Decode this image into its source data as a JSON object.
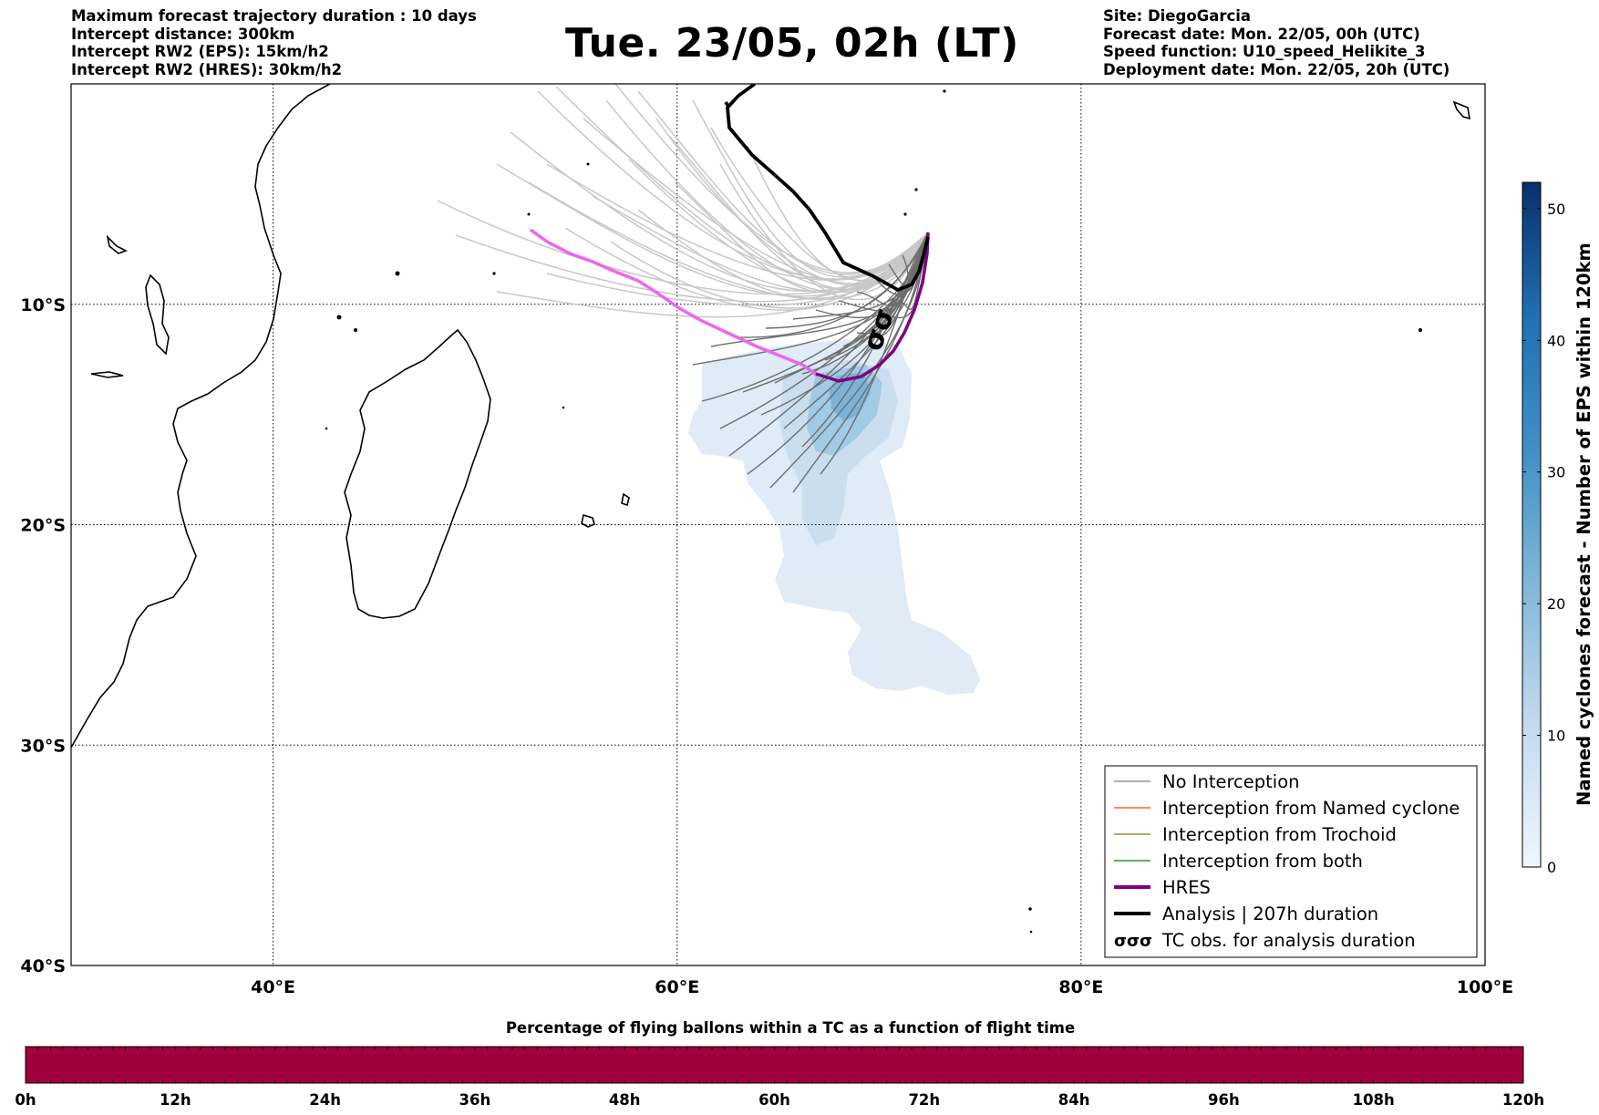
{
  "header": {
    "left_lines": [
      "Maximum forecast trajectory duration : 10 days",
      "Intercept distance: 300km",
      "Intercept RW2 (EPS):  15km/h2",
      "Intercept RW2 (HRES): 30km/h2"
    ],
    "title": "Tue. 23/05, 02h (LT)",
    "right_lines": [
      "Site: DiegoGarcia",
      "Forecast date: Mon. 22/05, 00h (UTC)",
      "Speed function: U10_speed_Helikite_3",
      "Deployment date: Mon. 22/05, 20h (UTC)"
    ]
  },
  "map": {
    "lon_range": [
      30,
      100
    ],
    "lat_range": [
      -40,
      0
    ],
    "lon_ticks": [
      {
        "value": 40,
        "label": "40°E"
      },
      {
        "value": 60,
        "label": "60°E"
      },
      {
        "value": 80,
        "label": "80°E"
      },
      {
        "value": 100,
        "label": "100°E"
      }
    ],
    "lat_ticks": [
      {
        "value": -10,
        "label": "10°S"
      },
      {
        "value": -20,
        "label": "20°S"
      },
      {
        "value": -30,
        "label": "30°S"
      },
      {
        "value": -40,
        "label": "40°S"
      }
    ],
    "colors": {
      "no_interception": "#808080",
      "named_cyclone": "#ff4500",
      "trochoid": "#808000",
      "both": "#008000",
      "hres": "#800080",
      "hres_faded": "#ee66ee",
      "analysis": "#000000",
      "density_low": "#dde9f6",
      "density_high": "#08306b",
      "flight_bar": "#a0003c"
    }
  },
  "legend": {
    "items": [
      {
        "label": "No Interception",
        "color": "#808080",
        "kind": "thin"
      },
      {
        "label": "Interception from Named cyclone",
        "color": "#ff4500",
        "kind": "thin"
      },
      {
        "label": "Interception from Trochoid",
        "color": "#808000",
        "kind": "thin"
      },
      {
        "label": "Interception from both",
        "color": "#008000",
        "kind": "thin"
      },
      {
        "label": "HRES",
        "color": "#800080",
        "kind": "thick"
      },
      {
        "label": "Analysis | 207h duration",
        "color": "#000000",
        "kind": "thick"
      },
      {
        "label": "TC obs. for analysis duration",
        "color": "#000000",
        "kind": "symbol",
        "symbol": "σσσ"
      }
    ]
  },
  "colorbar": {
    "label": "Named cyclones forecast - Number of EPS within 120km",
    "min": 0,
    "max": 52,
    "ticks": [
      0,
      10,
      20,
      30,
      40,
      50
    ]
  },
  "flight_bar": {
    "title": "Percentage of flying ballons within a TC as a function of flight time",
    "ticks": [
      "0h",
      "12h",
      "24h",
      "36h",
      "48h",
      "60h",
      "72h",
      "84h",
      "96h",
      "108h",
      "120h"
    ]
  }
}
